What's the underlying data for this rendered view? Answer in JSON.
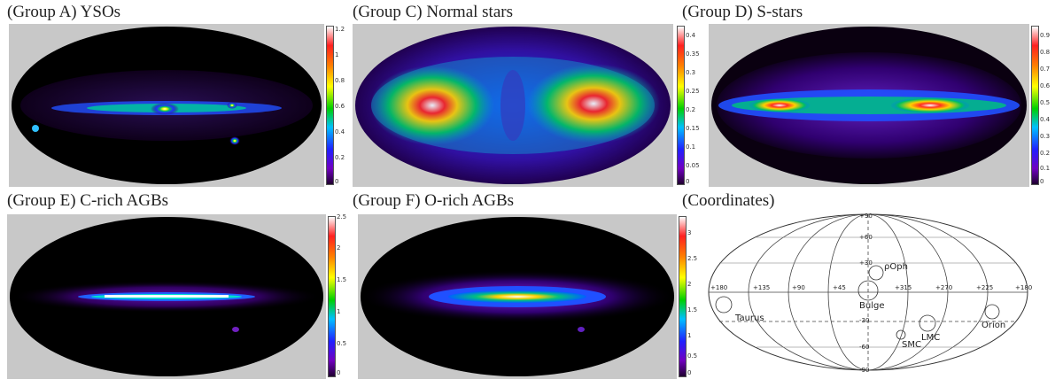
{
  "panels": [
    {
      "id": "a",
      "title": "(Group A) YSOs",
      "colorbar": {
        "ticks": [
          "1.2",
          "1",
          "0.8",
          "0.6",
          "0.4",
          "0.2",
          "0"
        ]
      }
    },
    {
      "id": "c",
      "title": "(Group C) Normal stars",
      "colorbar": {
        "ticks": [
          "0.4",
          "0.35",
          "0.3",
          "0.25",
          "0.2",
          "0.15",
          "0.1",
          "0.05",
          "0"
        ]
      }
    },
    {
      "id": "d",
      "title": "(Group D) S-stars",
      "colorbar": {
        "ticks": [
          "0.9",
          "0.8",
          "0.7",
          "0.6",
          "0.5",
          "0.4",
          "0.3",
          "0.2",
          "0.1",
          "0"
        ]
      }
    },
    {
      "id": "e",
      "title": "(Group E) C-rich AGBs",
      "colorbar": {
        "ticks": [
          "2.5",
          "2",
          "1.5",
          "1",
          "0.5",
          "0"
        ]
      }
    },
    {
      "id": "f",
      "title": "(Group F) O-rich AGBs",
      "colorbar": {
        "ticks": [
          "3",
          "2.5",
          "2",
          "1.5",
          "1",
          "0.5",
          "0"
        ]
      }
    }
  ],
  "coordinates": {
    "title": "(Coordinates)",
    "lat_labels": [
      "+90",
      "+60",
      "+30",
      "-30",
      "-60",
      "-90"
    ],
    "lon_labels": [
      "+180",
      "+135",
      "+90",
      "+45",
      "+315",
      "+270",
      "+225",
      "+180"
    ],
    "regions": {
      "taurus": "Taurus",
      "rho_oph": "ρOph",
      "bulge": "Bulge",
      "smc": "SMC",
      "lmc": "LMC",
      "orion": "Orion"
    }
  },
  "colors": {
    "background": "#c8c8c8",
    "sky": "#000000",
    "grid": "#333333"
  }
}
